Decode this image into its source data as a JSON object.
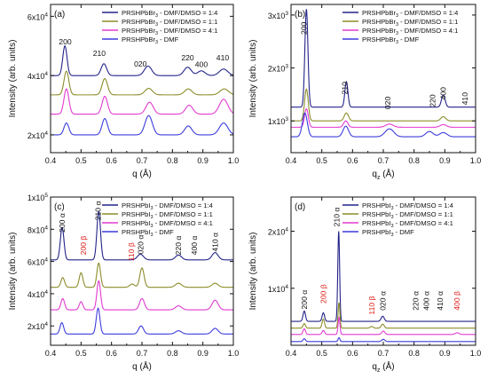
{
  "chart_data": [
    {
      "panel": "(a)",
      "type": "line",
      "xlabel": "q (Å)",
      "ylabel": "Intensity (arb. units)",
      "xlim": [
        0.4,
        1.0
      ],
      "ylim": [
        14000,
        64000
      ],
      "xticks": [
        "0.4",
        "0.5",
        "0.6",
        "0.7",
        "0.8",
        "0.9",
        "1.0"
      ],
      "yticks": [
        {
          "v": 20000,
          "label": "2x10",
          "exp": "4"
        },
        {
          "v": 40000,
          "label": "4x10",
          "exp": "4"
        },
        {
          "v": 60000,
          "label": "6x10",
          "exp": "4"
        }
      ],
      "legend_position": "top-right",
      "series": [
        {
          "name_pre": "PRSHPbBr",
          "name_sub": "3",
          "name_post": " - DMF/DMSO = 1:4",
          "color": "#23238a",
          "baseline": 40000,
          "peaks": [
            [
              0.447,
              10000,
              0.007
            ],
            [
              0.575,
              4000,
              0.009
            ],
            [
              0.72,
              3200,
              0.012
            ],
            [
              0.85,
              2800,
              0.012
            ],
            [
              0.895,
              1600,
              0.012
            ],
            [
              0.968,
              2200,
              0.014
            ]
          ]
        },
        {
          "name_pre": "PRSHPbBr",
          "name_sub": "3",
          "name_post": " - DMF/DMSO = 1:1",
          "color": "#8c8c2a",
          "baseline": 33500,
          "peaks": [
            [
              0.452,
              8000,
              0.008
            ],
            [
              0.578,
              5500,
              0.009
            ],
            [
              0.722,
              2200,
              0.012
            ],
            [
              0.852,
              2000,
              0.012
            ],
            [
              0.97,
              2000,
              0.014
            ]
          ]
        },
        {
          "name_pre": "PRSHPbBr",
          "name_sub": "3",
          "name_post": " - DMF/DMSO = 4:1",
          "color": "#e23ad0",
          "baseline": 27000,
          "peaks": [
            [
              0.452,
              8500,
              0.008
            ],
            [
              0.578,
              6000,
              0.009
            ],
            [
              0.725,
              4000,
              0.012
            ],
            [
              0.855,
              3000,
              0.012
            ],
            [
              0.968,
              5000,
              0.014
            ]
          ]
        },
        {
          "name_pre": "PRSHPbBr",
          "name_sub": "3",
          "name_post": " - DMF",
          "color": "#3c3cdc",
          "baseline": 20000,
          "peaks": [
            [
              0.452,
              4000,
              0.008
            ],
            [
              0.578,
              5500,
              0.009
            ],
            [
              0.722,
              6500,
              0.012
            ],
            [
              0.852,
              3000,
              0.012
            ],
            [
              0.968,
              4000,
              0.014
            ]
          ]
        }
      ],
      "annotations": [
        {
          "text": "200",
          "x": 0.448,
          "y": 51500,
          "color": "#111111"
        },
        {
          "text": "210",
          "x": 0.56,
          "y": 47500,
          "color": "#111111"
        },
        {
          "text": "020",
          "x": 0.695,
          "y": 44000,
          "color": "#111111"
        },
        {
          "text": "220",
          "x": 0.85,
          "y": 46000,
          "color": "#111111"
        },
        {
          "text": "400",
          "x": 0.895,
          "y": 43800,
          "color": "#111111"
        },
        {
          "text": "410",
          "x": 0.965,
          "y": 46000,
          "color": "#111111"
        }
      ]
    },
    {
      "panel": "(b)",
      "type": "line",
      "xlabel": "q",
      "xlabel_sub": "z",
      "xlabel_post": " (Å)",
      "ylabel": "Intensity (arb. units)",
      "xlim": [
        0.4,
        1.0
      ],
      "ylim": [
        400,
        3200
      ],
      "xticks": [
        "0.4",
        "0.5",
        "0.6",
        "0.7",
        "0.8",
        "0.9",
        "1.0"
      ],
      "yticks": [
        {
          "v": 1000,
          "label": "1x10",
          "exp": "3"
        },
        {
          "v": 2000,
          "label": "2x10",
          "exp": "3"
        },
        {
          "v": 3000,
          "label": "3x10",
          "exp": "3"
        }
      ],
      "legend_position": "top-right",
      "series": [
        {
          "name_pre": "PRSHPbBr",
          "name_sub": "3",
          "name_post": " - DMF/DMSO = 1:4",
          "color": "#23238a",
          "baseline": 1260,
          "peaks": [
            [
              0.45,
              1850,
              0.005
            ],
            [
              0.58,
              480,
              0.005
            ],
            [
              0.895,
              230,
              0.006
            ]
          ]
        },
        {
          "name_pre": "PRSHPbBr",
          "name_sub": "3",
          "name_post": " - DMF/DMSO = 1:1",
          "color": "#8c8c2a",
          "baseline": 1000,
          "peaks": [
            [
              0.45,
              600,
              0.006
            ],
            [
              0.58,
              150,
              0.007
            ],
            [
              0.895,
              80,
              0.008
            ]
          ]
        },
        {
          "name_pre": "PRSHPbBr",
          "name_sub": "3",
          "name_post": " - DMF/DMSO = 4:1",
          "color": "#e23ad0",
          "baseline": 880,
          "peaks": [
            [
              0.45,
              350,
              0.006
            ],
            [
              0.578,
              120,
              0.007
            ],
            [
              0.72,
              60,
              0.012
            ],
            [
              0.895,
              50,
              0.01
            ]
          ]
        },
        {
          "name_pre": "PRSHPbBr",
          "name_sub": "3",
          "name_post": " - DMF",
          "color": "#3c3cdc",
          "baseline": 700,
          "peaks": [
            [
              0.445,
              450,
              0.008
            ],
            [
              0.578,
              200,
              0.009
            ],
            [
              0.72,
              150,
              0.014
            ],
            [
              0.85,
              100,
              0.012
            ],
            [
              0.895,
              80,
              0.012
            ]
          ]
        }
      ],
      "annotations": [
        {
          "text": "200",
          "x": 0.442,
          "y": 2750,
          "color": "#111111",
          "rotate": true
        },
        {
          "text": "210",
          "x": 0.575,
          "y": 1620,
          "color": "#111111",
          "rotate": true
        },
        {
          "text": "020",
          "x": 0.715,
          "y": 1340,
          "color": "#111111",
          "rotate": true
        },
        {
          "text": "220",
          "x": 0.86,
          "y": 1380,
          "color": "#111111",
          "rotate": true
        },
        {
          "text": "400",
          "x": 0.895,
          "y": 1520,
          "color": "#111111",
          "rotate": true
        },
        {
          "text": "410",
          "x": 0.965,
          "y": 1420,
          "color": "#111111",
          "rotate": true
        }
      ]
    },
    {
      "panel": "(c)",
      "type": "line",
      "xlabel": "q (Å)",
      "ylabel": "Intensity (arb. units)",
      "xlim": [
        0.4,
        1.0
      ],
      "ylim": [
        8000,
        100000
      ],
      "xticks": [
        "0.4",
        "0.5",
        "0.6",
        "0.7",
        "0.8",
        "0.9",
        "1.0"
      ],
      "yticks": [
        {
          "v": 20000,
          "label": "2x10",
          "exp": "4"
        },
        {
          "v": 40000,
          "label": "4x10",
          "exp": "4"
        },
        {
          "v": 60000,
          "label": "6x10",
          "exp": "4"
        },
        {
          "v": 80000,
          "label": "8x10",
          "exp": "4"
        },
        {
          "v": 100000,
          "label": "1x10",
          "exp": "5"
        }
      ],
      "legend_position": "top-right",
      "series": [
        {
          "name_pre": "PRSHPbI",
          "name_sub": "3",
          "name_post": " - DMF/DMSO = 1:4",
          "color": "#23238a",
          "baseline": 61000,
          "peaks": [
            [
              0.438,
              20000,
              0.006
            ],
            [
              0.558,
              30000,
              0.006
            ],
            [
              0.695,
              3500,
              0.01
            ],
            [
              0.82,
              3000,
              0.01
            ],
            [
              0.94,
              4500,
              0.01
            ]
          ]
        },
        {
          "name_pre": "PRSHPbI",
          "name_sub": "3",
          "name_post": " - DMF/DMSO = 1:1",
          "color": "#8c8c2a",
          "baseline": 44000,
          "peaks": [
            [
              0.44,
              6000,
              0.006
            ],
            [
              0.5,
              9000,
              0.006
            ],
            [
              0.558,
              15000,
              0.006
            ],
            [
              0.668,
              2000,
              0.008
            ],
            [
              0.7,
              12000,
              0.007
            ],
            [
              0.82,
              2500,
              0.01
            ],
            [
              0.94,
              2500,
              0.01
            ]
          ]
        },
        {
          "name_pre": "PRSHPbI",
          "name_sub": "3",
          "name_post": " - DMF/DMSO = 4:1",
          "color": "#e23ad0",
          "baseline": 30000,
          "peaks": [
            [
              0.44,
              7000,
              0.006
            ],
            [
              0.5,
              5000,
              0.006
            ],
            [
              0.558,
              18000,
              0.006
            ],
            [
              0.7,
              7000,
              0.008
            ],
            [
              0.82,
              2500,
              0.01
            ],
            [
              0.94,
              6000,
              0.01
            ]
          ]
        },
        {
          "name_pre": "PRSHPbI",
          "name_sub": "3",
          "name_post": " - DMF",
          "color": "#3c3cdc",
          "baseline": 15000,
          "peaks": [
            [
              0.437,
              7000,
              0.006
            ],
            [
              0.556,
              16000,
              0.006
            ],
            [
              0.697,
              5000,
              0.008
            ],
            [
              0.82,
              2000,
              0.01
            ],
            [
              0.94,
              3500,
              0.01
            ]
          ]
        }
      ],
      "annotations": [
        {
          "text": "200 α",
          "x": 0.438,
          "y": 84000,
          "color": "#111111",
          "rotate": true
        },
        {
          "text": "200 β",
          "x": 0.508,
          "y": 70000,
          "color": "#e0201a",
          "rotate": true
        },
        {
          "text": "210 α",
          "x": 0.556,
          "y": 91500,
          "color": "#111111",
          "rotate": true
        },
        {
          "text": "110 β",
          "x": 0.665,
          "y": 66000,
          "color": "#e0201a",
          "rotate": true
        },
        {
          "text": "020 α",
          "x": 0.695,
          "y": 70500,
          "color": "#111111",
          "rotate": true
        },
        {
          "text": "220 α",
          "x": 0.82,
          "y": 70000,
          "color": "#111111",
          "rotate": true
        },
        {
          "text": "400 α",
          "x": 0.872,
          "y": 70000,
          "color": "#111111",
          "rotate": true
        },
        {
          "text": "410 α",
          "x": 0.94,
          "y": 72000,
          "color": "#111111",
          "rotate": true
        }
      ]
    },
    {
      "panel": "(d)",
      "type": "line",
      "xlabel": "q",
      "xlabel_sub": "z",
      "xlabel_post": " (Å)",
      "ylabel": "Intensity (arb. units)",
      "xlim": [
        0.4,
        1.0
      ],
      "ylim": [
        0,
        26000
      ],
      "xticks": [
        "0.4",
        "0.5",
        "0.6",
        "0.7",
        "0.8",
        "0.9",
        "1.0"
      ],
      "yticks": [
        {
          "v": 10000,
          "label": "1x10",
          "exp": "4"
        },
        {
          "v": 20000,
          "label": "2x10",
          "exp": "4"
        }
      ],
      "legend_position": "top-right",
      "series": [
        {
          "name_pre": "PRSHPbI",
          "name_sub": "3",
          "name_post": " - DMF/DMSO = 1:4",
          "color": "#23238a",
          "baseline": 4200,
          "peaks": [
            [
              0.443,
              1800,
              0.004
            ],
            [
              0.505,
              1500,
              0.004
            ],
            [
              0.555,
              15800,
              0.003
            ],
            [
              0.698,
              900,
              0.005
            ]
          ]
        },
        {
          "name_pre": "PRSHPbI",
          "name_sub": "3",
          "name_post": " - DMF/DMSO = 1:1",
          "color": "#8c8c2a",
          "baseline": 3000,
          "peaks": [
            [
              0.443,
              800,
              0.004
            ],
            [
              0.505,
              1600,
              0.004
            ],
            [
              0.556,
              4500,
              0.003
            ],
            [
              0.698,
              700,
              0.005
            ],
            [
              0.662,
              300,
              0.005
            ]
          ]
        },
        {
          "name_pre": "PRSHPbI",
          "name_sub": "3",
          "name_post": " - DMF/DMSO = 4:1",
          "color": "#e23ad0",
          "baseline": 1900,
          "peaks": [
            [
              0.443,
              1000,
              0.004
            ],
            [
              0.505,
              700,
              0.004
            ],
            [
              0.556,
              3000,
              0.003
            ],
            [
              0.7,
              600,
              0.005
            ],
            [
              0.94,
              300,
              0.006
            ]
          ]
        },
        {
          "name_pre": "PRSHPbI",
          "name_sub": "3",
          "name_post": " - DMF",
          "color": "#3c3cdc",
          "baseline": 650,
          "peaks": [
            [
              0.443,
              500,
              0.004
            ],
            [
              0.556,
              700,
              0.003
            ],
            [
              0.7,
              400,
              0.005
            ]
          ]
        }
      ],
      "annotations": [
        {
          "text": "200 α",
          "x": 0.443,
          "y": 8000,
          "color": "#111111",
          "rotate": true
        },
        {
          "text": "200 β",
          "x": 0.505,
          "y": 9000,
          "color": "#e0201a",
          "rotate": true
        },
        {
          "text": "210 α",
          "x": 0.548,
          "y": 22500,
          "color": "#111111",
          "rotate": true
        },
        {
          "text": "110 β",
          "x": 0.662,
          "y": 7000,
          "color": "#e0201a",
          "rotate": true
        },
        {
          "text": "020 α",
          "x": 0.698,
          "y": 7800,
          "color": "#111111",
          "rotate": true
        },
        {
          "text": "220 α",
          "x": 0.805,
          "y": 7800,
          "color": "#111111",
          "rotate": true
        },
        {
          "text": "400 α",
          "x": 0.84,
          "y": 7800,
          "color": "#111111",
          "rotate": true
        },
        {
          "text": "410 α",
          "x": 0.885,
          "y": 7800,
          "color": "#111111",
          "rotate": true
        },
        {
          "text": "400 β",
          "x": 0.94,
          "y": 7800,
          "color": "#e0201a",
          "rotate": true
        }
      ]
    }
  ]
}
